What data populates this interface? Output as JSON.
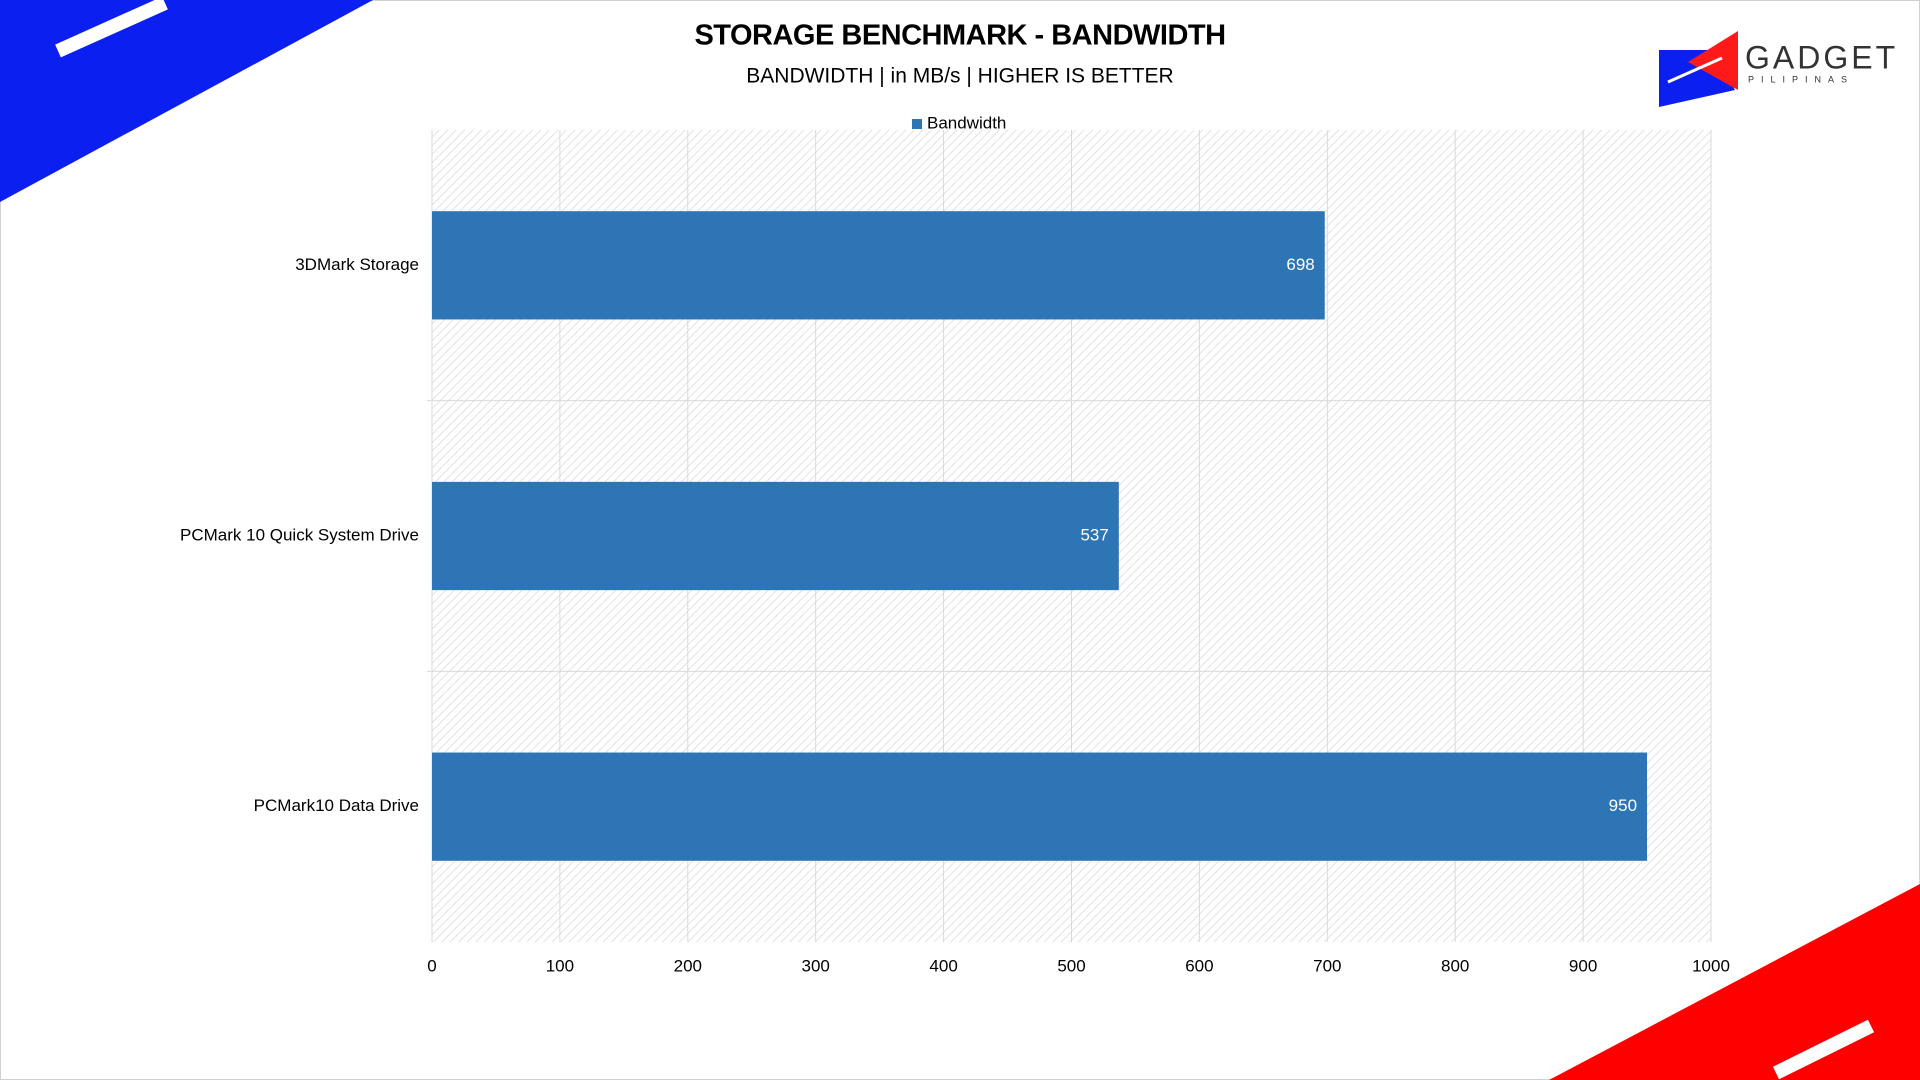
{
  "chart_data": {
    "type": "hbar",
    "title": "STORAGE BENCHMARK - BANDWIDTH",
    "subtitle": "BANDWIDTH | in MB/s | HIGHER IS BETTER",
    "categories": [
      "3DMark Storage",
      "PCMark 10 Quick System Drive",
      "PCMark10 Data Drive"
    ],
    "series": [
      {
        "name": "Bandwidth",
        "color": "#2e75b6",
        "values": [
          698,
          537,
          950
        ]
      }
    ],
    "xlim": [
      0,
      1000
    ],
    "xticks": [
      0,
      100,
      200,
      300,
      400,
      500,
      600,
      700,
      800,
      900,
      1000
    ],
    "grid": true,
    "legend": "top"
  },
  "logo": {
    "name": "GADGET",
    "tagline": "PILIPINAS"
  }
}
